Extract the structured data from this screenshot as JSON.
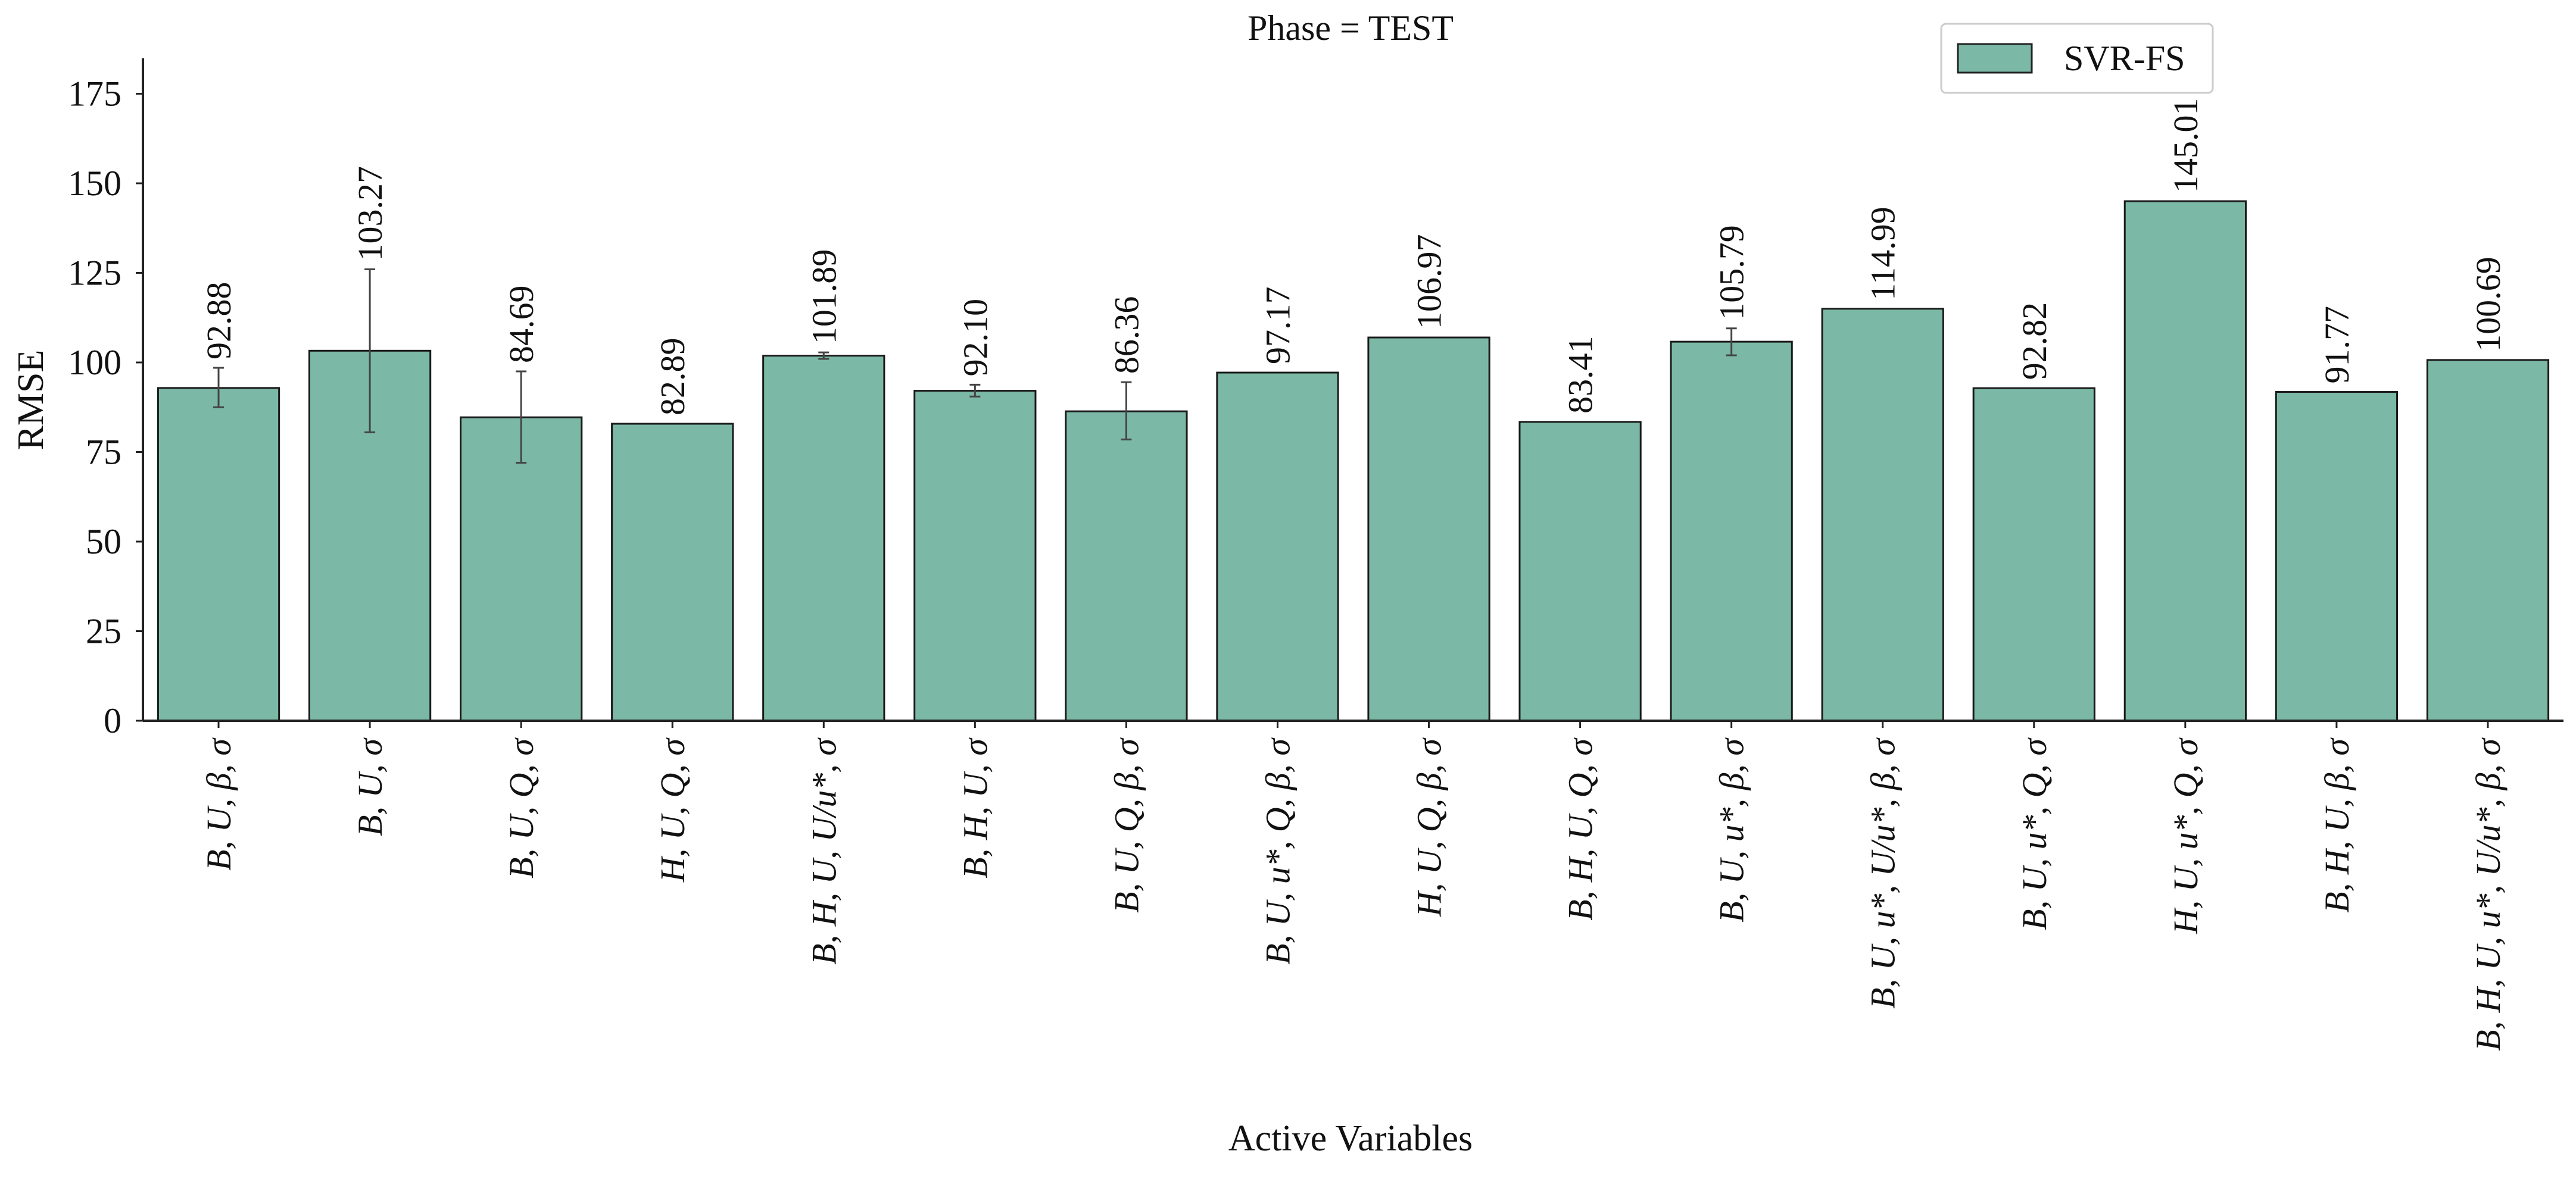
{
  "chart_data": {
    "type": "bar",
    "title": "Phase = TEST",
    "xlabel": "Active Variables",
    "ylabel": "RMSE",
    "ylim": [
      0,
      185
    ],
    "yticks": [
      0,
      25,
      50,
      75,
      100,
      125,
      150,
      175
    ],
    "grid": false,
    "legend_position": "top-right",
    "categories": [
      "B, U, β, σ",
      "B, U, σ",
      "B, U, Q, σ",
      "H, U, Q, σ",
      "B, H, U, U/u*, σ",
      "B, H, U, σ",
      "B, U, Q, β, σ",
      "B, U, u*, Q, β, σ",
      "H, U, Q, β, σ",
      "B, H, U, Q, σ",
      "B, U, u*, β, σ",
      "B, U, u*, U/u*, β, σ",
      "B, U, u*, Q, σ",
      "H, U, u*, Q, σ",
      "B, H, U, β, σ",
      "B, H, U, u*, U/u*, β, σ"
    ],
    "series": [
      {
        "name": "SVR-FS",
        "color": "#7bb9a6",
        "values": [
          92.88,
          103.27,
          84.69,
          82.89,
          101.89,
          92.1,
          86.36,
          97.17,
          106.97,
          83.41,
          105.79,
          114.99,
          92.82,
          145.01,
          91.77,
          100.69
        ],
        "value_labels": [
          "92.88",
          "103.27",
          "84.69",
          "82.89",
          "101.89",
          "92.10",
          "86.36",
          "97.17",
          "106.97",
          "83.41",
          "105.79",
          "114.99",
          "92.82",
          "145.01",
          "91.77",
          "100.69"
        ],
        "error_low": [
          87.5,
          80.5,
          72.0,
          null,
          101.0,
          90.5,
          78.5,
          null,
          null,
          null,
          102.0,
          null,
          null,
          null,
          null,
          null
        ],
        "error_high": [
          98.5,
          126.0,
          97.5,
          null,
          102.8,
          93.8,
          94.5,
          null,
          null,
          null,
          109.5,
          null,
          null,
          null,
          null,
          null
        ]
      }
    ]
  }
}
